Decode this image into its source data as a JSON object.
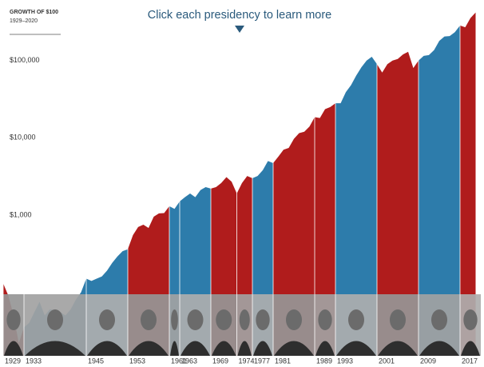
{
  "chart_data": {
    "type": "area",
    "title": "Click each presidency to learn more",
    "subtitle": "GROWTH OF $100",
    "period": "1929–2020",
    "log_y": true,
    "xlim": [
      1929,
      2021
    ],
    "ylim": [
      15,
      480000
    ],
    "yticks": [
      {
        "value": 1000,
        "label": "$1,000"
      },
      {
        "value": 10000,
        "label": "$10,000"
      },
      {
        "value": 100000,
        "label": "$100,000"
      }
    ],
    "x": [
      1929,
      1930,
      1931,
      1932,
      1933,
      1934,
      1935,
      1936,
      1937,
      1938,
      1939,
      1940,
      1941,
      1942,
      1943,
      1944,
      1945,
      1946,
      1947,
      1948,
      1949,
      1950,
      1951,
      1952,
      1953,
      1954,
      1955,
      1956,
      1957,
      1958,
      1959,
      1960,
      1961,
      1962,
      1963,
      1964,
      1965,
      1966,
      1967,
      1968,
      1969,
      1970,
      1971,
      1972,
      1973,
      1974,
      1975,
      1976,
      1977,
      1978,
      1979,
      1980,
      1981,
      1982,
      1983,
      1984,
      1985,
      1986,
      1987,
      1988,
      1989,
      1990,
      1991,
      1992,
      1993,
      1994,
      1995,
      1996,
      1997,
      1998,
      1999,
      2000,
      2001,
      2002,
      2003,
      2004,
      2005,
      2006,
      2007,
      2008,
      2009,
      2010,
      2011,
      2012,
      2013,
      2014,
      2015,
      2016,
      2017,
      2018,
      2019,
      2020
    ],
    "values": [
      130,
      90,
      50,
      22,
      35,
      40,
      55,
      75,
      50,
      60,
      58,
      55,
      50,
      60,
      80,
      100,
      150,
      140,
      150,
      160,
      190,
      240,
      290,
      340,
      360,
      550,
      700,
      750,
      680,
      950,
      1050,
      1060,
      1300,
      1200,
      1500,
      1700,
      1900,
      1700,
      2100,
      2300,
      2200,
      2300,
      2600,
      3100,
      2700,
      1900,
      2600,
      3200,
      3000,
      3200,
      3800,
      5000,
      4700,
      5700,
      7000,
      7400,
      9700,
      11500,
      12000,
      14000,
      18500,
      18000,
      23500,
      25000,
      28000,
      28000,
      39000,
      48000,
      64000,
      82000,
      100000,
      112000,
      90000,
      70000,
      90000,
      100000,
      105000,
      120000,
      130000,
      80000,
      100000,
      115000,
      118000,
      137000,
      180000,
      205000,
      208000,
      233000,
      285000,
      270000,
      355000,
      420000
    ],
    "presidencies": [
      {
        "start": 1929,
        "color": "#b01c1c"
      },
      {
        "start": 1933,
        "color": "#2d7cab"
      },
      {
        "start": 1945,
        "color": "#2d7cab"
      },
      {
        "start": 1953,
        "color": "#b01c1c"
      },
      {
        "start": 1961,
        "color": "#2d7cab"
      },
      {
        "start": 1963,
        "color": "#2d7cab"
      },
      {
        "start": 1969,
        "color": "#b01c1c"
      },
      {
        "start": 1974,
        "color": "#b01c1c"
      },
      {
        "start": 1977,
        "color": "#2d7cab"
      },
      {
        "start": 1981,
        "color": "#b01c1c"
      },
      {
        "start": 1989,
        "color": "#b01c1c"
      },
      {
        "start": 1993,
        "color": "#2d7cab"
      },
      {
        "start": 2001,
        "color": "#b01c1c"
      },
      {
        "start": 2009,
        "color": "#2d7cab"
      },
      {
        "start": 2017,
        "color": "#b01c1c"
      }
    ]
  }
}
